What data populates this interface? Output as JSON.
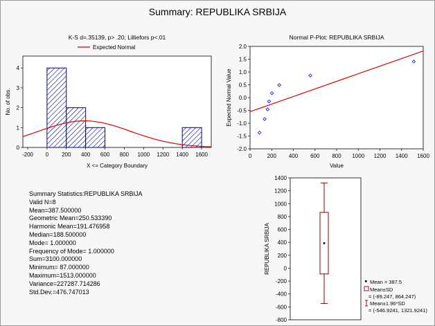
{
  "page_title": "Summary: REPUBLIKA SRBIJA",
  "colors": {
    "bar": "#00008b",
    "curve": "#dd0000",
    "points": "#2222ff",
    "box": "#880000"
  },
  "chart_data": [
    {
      "type": "bar",
      "name": "histogram",
      "title": "K-S d=.35139, p> .20; Lilliefors p<.01",
      "legend": "Expected Normal",
      "xlabel": "X <= Category Boundary",
      "ylabel": "No. of obs.",
      "xlim": [
        -250,
        1700
      ],
      "ylim": [
        0,
        4.6
      ],
      "xticks": [
        "-200",
        "0",
        "200",
        "400",
        "600",
        "800",
        "1000",
        "1200",
        "1400",
        "1600"
      ],
      "yticks": [
        "0",
        "1",
        "2",
        "3",
        "4"
      ],
      "bins": [
        {
          "from": 0,
          "to": 200,
          "count": 4
        },
        {
          "from": 200,
          "to": 400,
          "count": 2
        },
        {
          "from": 400,
          "to": 600,
          "count": 1
        },
        {
          "from": 1400,
          "to": 1600,
          "count": 1
        }
      ],
      "normal": {
        "mean": 387.5,
        "sd": 476.747013,
        "n": 8,
        "bin_width": 200
      }
    },
    {
      "type": "scatter",
      "name": "normal-p-plot",
      "title": "Normal P-Plot: REPUBLIKA SRBIJA",
      "xlabel": "Value",
      "ylabel": "Expected Normal Value",
      "xlim": [
        0,
        1600
      ],
      "ylim": [
        -2.0,
        2.0
      ],
      "xticks": [
        "0",
        "200",
        "400",
        "600",
        "800",
        "1000",
        "1200",
        "1400",
        "1600"
      ],
      "yticks": [
        "2.0",
        "1.5",
        "1.0",
        "0.5",
        "0.0",
        "-0.5",
        "-1.0",
        "-1.5",
        "-2.0"
      ],
      "points": [
        {
          "x": 87,
          "y": -1.37
        },
        {
          "x": 135,
          "y": -0.84
        },
        {
          "x": 162,
          "y": -0.46
        },
        {
          "x": 175,
          "y": -0.15
        },
        {
          "x": 202,
          "y": 0.17
        },
        {
          "x": 270,
          "y": 0.49
        },
        {
          "x": 556,
          "y": 0.86
        },
        {
          "x": 1513,
          "y": 1.41
        }
      ],
      "line": {
        "x0": 0,
        "y0": -0.55,
        "x1": 1600,
        "y1": 1.82
      }
    },
    {
      "type": "box",
      "name": "box-plot",
      "ylabel": "REPUBLIKA SRBIJA",
      "ylim": [
        -800,
        1400
      ],
      "yticks": [
        "1400",
        "1200",
        "1000",
        "800",
        "600",
        "400",
        "200",
        "0",
        "-200",
        "-400",
        "-600",
        "-800"
      ],
      "mean": 387.5,
      "box": [
        -89.247,
        864.247
      ],
      "whiskers": [
        -546.9241,
        1321.9241
      ],
      "legend": [
        "Mean = 387.5",
        "Mean±SD",
        "= (-89.247, 864.247)",
        "Mean±1.96*SD",
        "= (-546.9241, 1321.9241)"
      ]
    }
  ],
  "stats": {
    "title": "Summary Statistics:REPUBLIKA SRBIJA",
    "lines": [
      "Valid N=8",
      "Mean=387.500000",
      "Geometric Mean=250.533390",
      "Harmonic Mean=191.476958",
      "Median=188.500000",
      "Mode= 1.000000",
      "Frequency of Mode= 1.000000",
      "Sum=3100.000000",
      "Minimum= 87.000000",
      "Maximum=1513.000000",
      "Variance=227287.714286",
      "Std.Dev.=476.747013"
    ]
  }
}
